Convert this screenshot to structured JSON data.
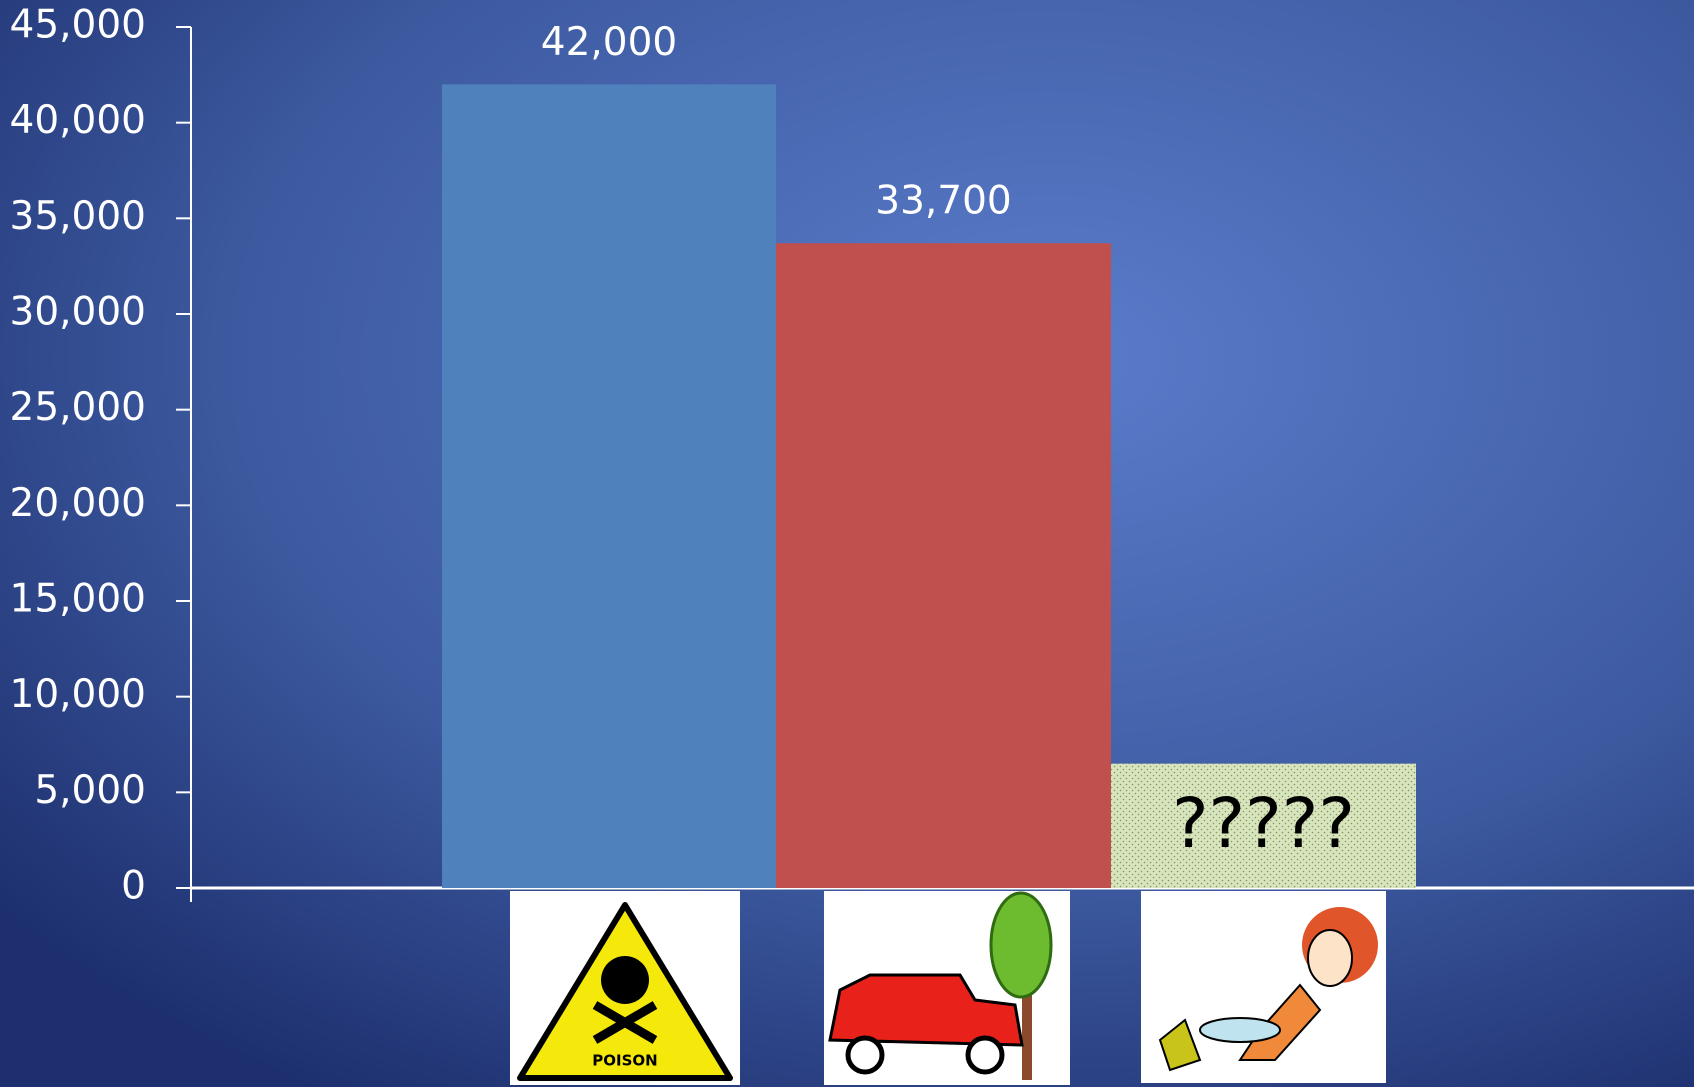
{
  "chart_data": {
    "type": "bar",
    "categories": [
      null,
      null,
      null
    ],
    "values": [
      42000,
      33700,
      6500
    ],
    "value_labels": [
      "42,000",
      "33,700",
      "?????"
    ],
    "colors": [
      "#4f81bd",
      "#c0504d",
      "#d7e4bd"
    ],
    "ylim": [
      0,
      45000
    ],
    "yticks": [
      0,
      {
        "value": 5000,
        "label": "5,000"
      },
      {
        "value": 10000,
        "label": "10,000"
      },
      {
        "value": 15000,
        "label": "15,000"
      },
      {
        "value": 20000,
        "label": "20,000"
      },
      {
        "value": 25000,
        "label": "25,000"
      },
      {
        "value": 30000,
        "label": "30,000"
      },
      {
        "value": 35000,
        "label": "35,000"
      },
      {
        "value": 40000,
        "label": "40,000"
      },
      {
        "value": 45000,
        "label": "45,000"
      }
    ]
  }
}
